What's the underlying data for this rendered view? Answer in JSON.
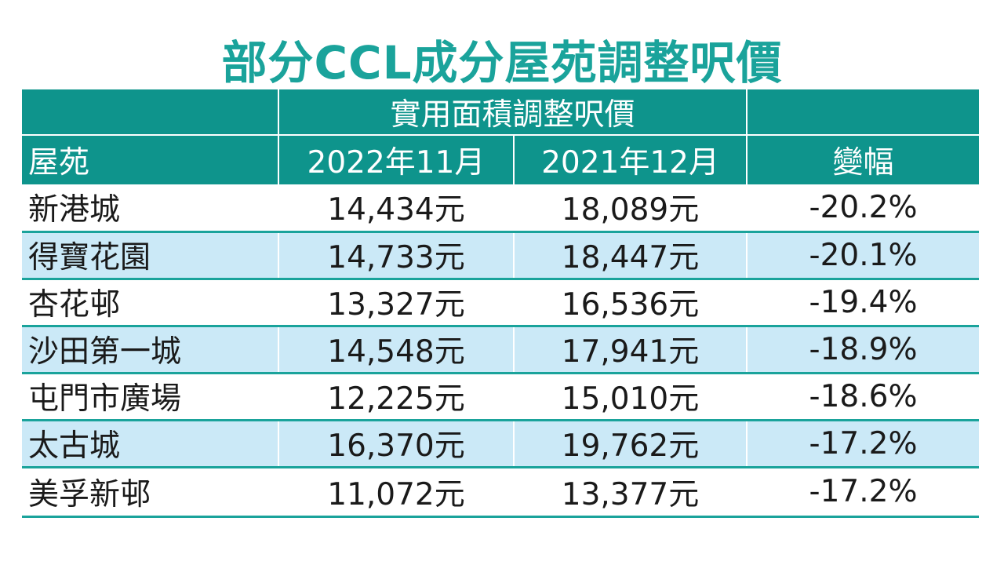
{
  "chart_data": {
    "type": "table",
    "title": "部分CCL成分屋苑調整呎價",
    "header_group": "實用面積調整呎價",
    "columns": [
      "屋苑",
      "2022年11月",
      "2021年12月",
      "變幅"
    ],
    "rows": [
      {
        "estate": "新港城",
        "nov_2022": "14,434元",
        "dec_2021": "18,089元",
        "change": "-20.2%"
      },
      {
        "estate": "得寶花園",
        "nov_2022": "14,733元",
        "dec_2021": "18,447元",
        "change": "-20.1%"
      },
      {
        "estate": "杏花邨",
        "nov_2022": "13,327元",
        "dec_2021": "16,536元",
        "change": "-19.4%"
      },
      {
        "estate": "沙田第一城",
        "nov_2022": "14,548元",
        "dec_2021": "17,941元",
        "change": "-18.9%"
      },
      {
        "estate": "屯門市廣場",
        "nov_2022": "12,225元",
        "dec_2021": "15,010元",
        "change": "-18.6%"
      },
      {
        "estate": "太古城",
        "nov_2022": "16,370元",
        "dec_2021": "19,762元",
        "change": "-17.2%"
      },
      {
        "estate": "美孚新邨",
        "nov_2022": "11,072元",
        "dec_2021": "13,377元",
        "change": "-17.2%"
      }
    ],
    "colors": {
      "title": "#1aa39b",
      "header_bg": "#0e948c",
      "row_shade": "#cbe9f7",
      "rule": "#1aa39b"
    }
  }
}
